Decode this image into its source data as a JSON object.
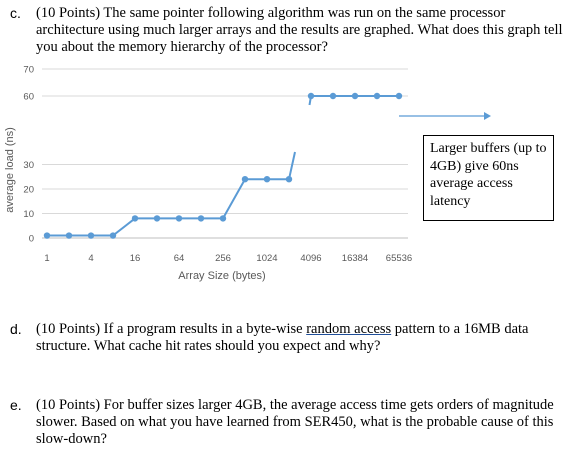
{
  "question_c": {
    "label": "c.",
    "text": "(10 Points) The same pointer following algorithm was run on the same processor architecture using much larger arrays and the results are graphed.  What does this graph tell you about the memory hierarchy of the processor?"
  },
  "chart_data": {
    "type": "line",
    "title": "",
    "xlabel": "Array Size (bytes)",
    "ylabel": "average load (ns)",
    "x_ticks": [
      "1",
      "4",
      "16",
      "64",
      "256",
      "1024",
      "4096",
      "16384",
      "65536"
    ],
    "y_ticks_lower": [
      "0",
      "10",
      "20",
      "30"
    ],
    "y_ticks_upper": [
      "60",
      "70"
    ],
    "series": [
      {
        "points": [
          {
            "x": 1,
            "y": 1
          },
          {
            "x": 2,
            "y": 1
          },
          {
            "x": 4,
            "y": 1
          },
          {
            "x": 8,
            "y": 1
          },
          {
            "x": 16,
            "y": 8
          },
          {
            "x": 32,
            "y": 8
          },
          {
            "x": 64,
            "y": 8
          },
          {
            "x": 128,
            "y": 8
          },
          {
            "x": 256,
            "y": 8
          },
          {
            "x": 512,
            "y": 24
          },
          {
            "x": 1024,
            "y": 24
          },
          {
            "x": 2048,
            "y": 24
          },
          {
            "x": 4096,
            "y": 60
          },
          {
            "x": 8192,
            "y": 60
          },
          {
            "x": 16384,
            "y": 60
          },
          {
            "x": 32768,
            "y": 60
          },
          {
            "x": 65536,
            "y": 60
          }
        ]
      }
    ],
    "grid": true,
    "line_color": "#5b9bd5"
  },
  "callout": {
    "text": "Larger buffers (up to 4GB) give 60ns average access latency"
  },
  "question_d": {
    "label": "d.",
    "text_before": "(10 Points) If a program results in a byte-wise ",
    "underlined": "random access",
    "text_after": " pattern to a 16MB data structure.  What cache hit rates should you expect and why?"
  },
  "question_e": {
    "label": "e.",
    "text": "(10 Points) For buffer sizes larger 4GB, the average access time gets orders of magnitude slower.  Based on what you have learned from SER450, what is the probable cause of this slow-down?"
  }
}
